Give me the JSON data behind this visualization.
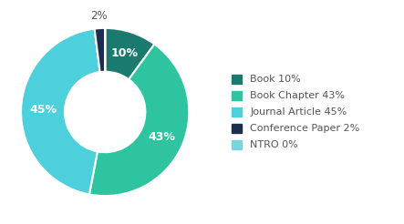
{
  "labels": [
    "Book",
    "Book Chapter",
    "Journal Article",
    "Conference Paper",
    "NTRO"
  ],
  "values": [
    10,
    43,
    45,
    2,
    0.0001
  ],
  "display_pcts": [
    "10%",
    "43%",
    "45%",
    "2%",
    ""
  ],
  "pct_outside": [
    false,
    false,
    false,
    true,
    false
  ],
  "colors": [
    "#1a7a6e",
    "#2ec4a0",
    "#4dcfdc",
    "#1c2d4f",
    "#7ad4dc"
  ],
  "legend_labels": [
    "Book 10%",
    "Book Chapter 43%",
    "Journal Article 45%",
    "Conference Paper 2%",
    "NTRO 0%"
  ],
  "wedge_text_color": "white",
  "outside_text_color": "#555555",
  "background_color": "#ffffff",
  "startangle": 90,
  "donut_width": 0.52
}
